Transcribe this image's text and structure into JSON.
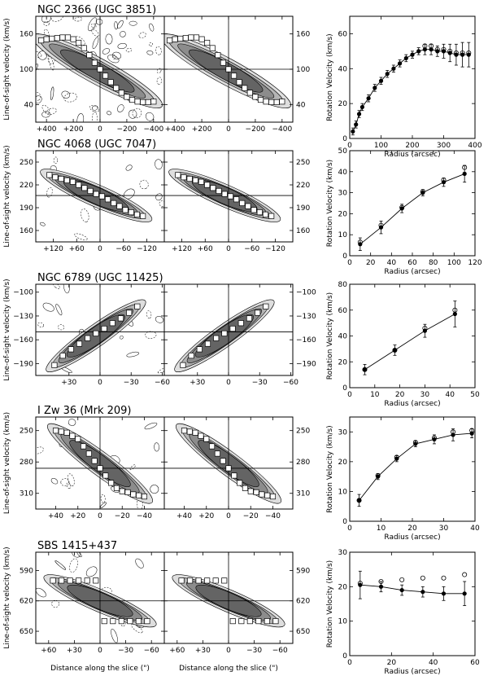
{
  "figure": {
    "x_label_pv": "Distance along the slice (\")",
    "y_label_pv": "Line-of-sight velocity (km/s)",
    "y_label_rc": "Rotation Velocity (km/s)",
    "x_label_rc": "Radius (arcsec)"
  },
  "chart_data": [
    {
      "type": "scatter",
      "galaxy": "NGC 2366 (UGC 3851)",
      "pv": {
        "xlim": [
          480,
          -480
        ],
        "ylim": [
          190,
          10
        ],
        "xticks": [
          400,
          200,
          0,
          -200,
          -400
        ],
        "xtick_labels": [
          "+400",
          "+200",
          "0",
          "−200",
          "−400"
        ],
        "yticks": [
          40,
          100,
          160
        ],
        "ytick_labels": [
          "40",
          "100",
          "160"
        ],
        "systemic_velocity": 100,
        "center": 0,
        "points": [
          [
            440,
            149
          ],
          [
            400,
            151
          ],
          [
            360,
            152
          ],
          [
            320,
            153
          ],
          [
            280,
            154
          ],
          [
            240,
            154
          ],
          [
            200,
            151
          ],
          [
            160,
            145
          ],
          [
            120,
            136
          ],
          [
            80,
            124
          ],
          [
            40,
            111
          ],
          [
            0,
            100
          ],
          [
            -40,
            89
          ],
          [
            -80,
            78
          ],
          [
            -120,
            68
          ],
          [
            -160,
            60
          ],
          [
            -200,
            53
          ],
          [
            -240,
            48
          ],
          [
            -280,
            45
          ],
          [
            -320,
            44
          ],
          [
            -360,
            44
          ],
          [
            -400,
            45
          ]
        ]
      },
      "rc": {
        "xlim": [
          0,
          400
        ],
        "ylim": [
          0,
          70
        ],
        "xticks": [
          0,
          100,
          200,
          300,
          400
        ],
        "yticks": [
          0,
          20,
          40,
          60
        ],
        "series": [
          {
            "marker": "filled",
            "points": [
              [
                10,
                4
              ],
              [
                20,
                8
              ],
              [
                30,
                14
              ],
              [
                40,
                18
              ],
              [
                60,
                23
              ],
              [
                80,
                29
              ],
              [
                100,
                33
              ],
              [
                120,
                37
              ],
              [
                140,
                40
              ],
              [
                160,
                43
              ],
              [
                180,
                46
              ],
              [
                200,
                48
              ],
              [
                220,
                50
              ],
              [
                240,
                51
              ],
              [
                260,
                51
              ],
              [
                280,
                50
              ],
              [
                300,
                50
              ],
              [
                320,
                49
              ],
              [
                340,
                48
              ],
              [
                360,
                48
              ],
              [
                380,
                48
              ]
            ],
            "errors": [
              2,
              2,
              2,
              2,
              2,
              2,
              2,
              2,
              2,
              2,
              2,
              2,
              2,
              3,
              3,
              3,
              4,
              5,
              6,
              7,
              7
            ]
          },
          {
            "marker": "open",
            "points": [
              [
                240,
                53
              ],
              [
                260,
                53
              ],
              [
                280,
                51
              ],
              [
                300,
                51
              ],
              [
                320,
                50
              ],
              [
                340,
                49
              ],
              [
                360,
                49
              ],
              [
                380,
                49
              ]
            ]
          }
        ]
      }
    },
    {
      "type": "scatter",
      "galaxy": "NGC 4068 (UGC 7047)",
      "pv": {
        "xlim": [
          165,
          -165
        ],
        "ylim": [
          265,
          145
        ],
        "xticks": [
          120,
          60,
          0,
          -60,
          -120
        ],
        "xtick_labels": [
          "+120",
          "+60",
          "0",
          "−60",
          "−120"
        ],
        "yticks": [
          160,
          190,
          220,
          250
        ],
        "ytick_labels": [
          "160",
          "190",
          "220",
          "250"
        ],
        "systemic_velocity": 206,
        "center": 0,
        "points": [
          [
            130,
            233
          ],
          [
            115,
            230
          ],
          [
            100,
            228
          ],
          [
            85,
            226
          ],
          [
            70,
            224
          ],
          [
            55,
            220
          ],
          [
            40,
            216
          ],
          [
            25,
            212
          ],
          [
            10,
            208
          ],
          [
            -5,
            205
          ],
          [
            -20,
            201
          ],
          [
            -35,
            196
          ],
          [
            -50,
            192
          ],
          [
            -65,
            187
          ],
          [
            -80,
            184
          ],
          [
            -95,
            181
          ],
          [
            -110,
            179
          ]
        ]
      },
      "rc": {
        "xlim": [
          0,
          120
        ],
        "ylim": [
          0,
          50
        ],
        "xticks": [
          0,
          20,
          40,
          60,
          80,
          100,
          120
        ],
        "yticks": [
          0,
          10,
          20,
          30,
          40,
          50
        ],
        "series": [
          {
            "marker": "filled",
            "points": [
              [
                10,
                5.5
              ],
              [
                30,
                13.5
              ],
              [
                50,
                22.5
              ],
              [
                70,
                30
              ],
              [
                90,
                35
              ],
              [
                110,
                39
              ]
            ],
            "errors": [
              3,
              3,
              2,
              1.5,
              2,
              4
            ]
          },
          {
            "marker": "open",
            "points": [
              [
                10,
                6.5
              ],
              [
                30,
                14.5
              ],
              [
                50,
                23
              ],
              [
                70,
                30.5
              ],
              [
                90,
                36
              ],
              [
                110,
                42
              ]
            ]
          }
        ]
      }
    },
    {
      "type": "scatter",
      "galaxy": "NGC 6789 (UGC 11425)",
      "pv": {
        "xlim": [
          62,
          -62
        ],
        "ylim": [
          -90,
          -205
        ],
        "xticks": [
          30,
          0,
          -30,
          -60
        ],
        "xtick_labels": [
          "+30",
          "0",
          "−30",
          "−60"
        ],
        "yticks": [
          -100,
          -130,
          -160,
          -190
        ],
        "ytick_labels": [
          "−100",
          "−130",
          "−160",
          "−190"
        ],
        "systemic_velocity": -150,
        "center": 0,
        "points": [
          [
            44,
            -192
          ],
          [
            36,
            -180
          ],
          [
            28,
            -172
          ],
          [
            20,
            -165
          ],
          [
            12,
            -158
          ],
          [
            4,
            -152
          ],
          [
            -4,
            -146
          ],
          [
            -12,
            -139
          ],
          [
            -20,
            -133
          ],
          [
            -28,
            -126
          ],
          [
            -36,
            -118
          ]
        ]
      },
      "rc": {
        "xlim": [
          0,
          50
        ],
        "ylim": [
          0,
          80
        ],
        "xticks": [
          0,
          10,
          20,
          30,
          40,
          50
        ],
        "yticks": [
          0,
          20,
          40,
          60,
          80
        ],
        "series": [
          {
            "marker": "filled",
            "points": [
              [
                6,
                14
              ],
              [
                18,
                29
              ],
              [
                30,
                44
              ],
              [
                42,
                57
              ]
            ],
            "errors": [
              4,
              4,
              5,
              10
            ]
          },
          {
            "marker": "open",
            "points": [
              [
                6,
                14
              ],
              [
                18,
                29
              ],
              [
                30,
                46
              ],
              [
                42,
                60
              ]
            ]
          }
        ]
      }
    },
    {
      "type": "scatter",
      "galaxy": "I Zw 36 (Mrk 209)",
      "pv": {
        "xlim": [
          58,
          -58
        ],
        "ylim": [
          237,
          325
        ],
        "xticks": [
          40,
          20,
          0,
          -20,
          -40
        ],
        "xtick_labels": [
          "+40",
          "+20",
          "0",
          "−20",
          "−40"
        ],
        "yticks": [
          250,
          280,
          310
        ],
        "ytick_labels": [
          "250",
          "280",
          "310"
        ],
        "systemic_velocity": 286,
        "center": 0,
        "points": [
          [
            40,
            250
          ],
          [
            35,
            251
          ],
          [
            30,
            252
          ],
          [
            25,
            255
          ],
          [
            20,
            258
          ],
          [
            15,
            265
          ],
          [
            10,
            272
          ],
          [
            5,
            279
          ],
          [
            0,
            286
          ],
          [
            -5,
            293
          ],
          [
            -10,
            300
          ],
          [
            -15,
            305
          ],
          [
            -20,
            308
          ],
          [
            -25,
            309
          ],
          [
            -30,
            311
          ],
          [
            -35,
            312
          ],
          [
            -40,
            313
          ]
        ]
      },
      "rc": {
        "xlim": [
          0,
          40
        ],
        "ylim": [
          0,
          35
        ],
        "xticks": [
          0,
          10,
          20,
          30,
          40
        ],
        "yticks": [
          0,
          10,
          20,
          30
        ],
        "series": [
          {
            "marker": "filled",
            "points": [
              [
                3,
                7
              ],
              [
                9,
                15
              ],
              [
                15,
                21
              ],
              [
                21,
                26
              ],
              [
                27,
                27.5
              ],
              [
                33,
                29
              ],
              [
                39,
                29.5
              ]
            ],
            "errors": [
              2,
              1,
              1,
              1,
              1.5,
              2,
              1.5
            ]
          },
          {
            "marker": "open",
            "points": [
              [
                3,
                7
              ],
              [
                9,
                15.3
              ],
              [
                15,
                21.5
              ],
              [
                21,
                26.5
              ],
              [
                27,
                28
              ],
              [
                33,
                30
              ],
              [
                39,
                30.5
              ]
            ]
          }
        ]
      }
    },
    {
      "type": "scatter",
      "galaxy": "SBS 1415+437",
      "pv": {
        "xlim": [
          75,
          -75
        ],
        "ylim": [
          572,
          662
        ],
        "xticks": [
          60,
          30,
          0,
          -30,
          -60
        ],
        "xtick_labels": [
          "+60",
          "+30",
          "0",
          "−30",
          "−60"
        ],
        "yticks": [
          590,
          620,
          650
        ],
        "ytick_labels": [
          "590",
          "620",
          "650"
        ],
        "systemic_velocity": 620,
        "center": 0,
        "points": [
          [
            55,
            600
          ],
          [
            45,
            600
          ],
          [
            35,
            600
          ],
          [
            25,
            600
          ],
          [
            15,
            600
          ],
          [
            5,
            600
          ],
          [
            -5,
            640
          ],
          [
            -15,
            640
          ],
          [
            -25,
            640
          ],
          [
            -35,
            640
          ],
          [
            -45,
            640
          ],
          [
            -55,
            640
          ]
        ]
      },
      "rc": {
        "xlim": [
          0,
          60
        ],
        "ylim": [
          0,
          30
        ],
        "xticks": [
          0,
          20,
          40,
          60
        ],
        "yticks": [
          0,
          10,
          20,
          30
        ],
        "series": [
          {
            "marker": "filled",
            "points": [
              [
                5,
                20.5
              ],
              [
                15,
                20
              ],
              [
                25,
                19
              ],
              [
                35,
                18.5
              ],
              [
                45,
                18
              ],
              [
                55,
                18
              ]
            ],
            "errors": [
              4,
              1.5,
              1.5,
              1.5,
              2,
              3.5
            ]
          },
          {
            "marker": "open",
            "points": [
              [
                5,
                21
              ],
              [
                15,
                21.5
              ],
              [
                25,
                22
              ],
              [
                35,
                22.5
              ],
              [
                45,
                22.5
              ],
              [
                55,
                23.5
              ]
            ]
          }
        ]
      }
    }
  ]
}
